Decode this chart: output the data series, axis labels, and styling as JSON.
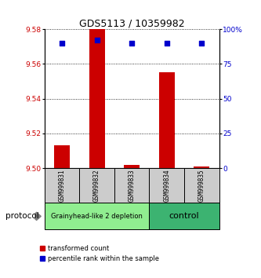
{
  "title": "GDS5113 / 10359982",
  "samples": [
    "GSM999831",
    "GSM999832",
    "GSM999833",
    "GSM999834",
    "GSM999835"
  ],
  "red_values": [
    9.513,
    9.58,
    9.502,
    9.555,
    9.501
  ],
  "blue_values": [
    90,
    92,
    90,
    90,
    90
  ],
  "ylim_left": [
    9.5,
    9.58
  ],
  "ylim_right": [
    0,
    100
  ],
  "yticks_left": [
    9.5,
    9.52,
    9.54,
    9.56,
    9.58
  ],
  "yticks_right": [
    0,
    25,
    50,
    75,
    100
  ],
  "ytick_labels_right": [
    "0",
    "25",
    "50",
    "75",
    "100%"
  ],
  "groups": [
    {
      "label": "Grainyhead-like 2 depletion",
      "color": "#90EE90",
      "fontsize": 6,
      "count": 3
    },
    {
      "label": "control",
      "color": "#3CB371",
      "fontsize": 8,
      "count": 2
    }
  ],
  "bar_color": "#CC0000",
  "dot_color": "#0000CC",
  "sample_box_color": "#CCCCCC",
  "bar_width": 0.45,
  "dot_size": 18,
  "legend_red_label": "transformed count",
  "legend_blue_label": "percentile rank within the sample",
  "protocol_label": "protocol"
}
